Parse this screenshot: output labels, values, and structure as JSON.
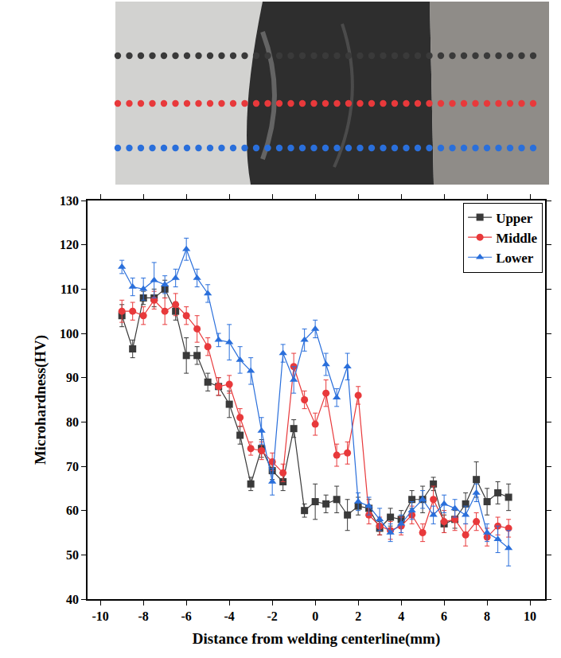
{
  "chart_data": {
    "type": "line",
    "xlabel": "Distance from welding centerline(mm)",
    "ylabel": "Microhardness(HV)",
    "x": [
      -9,
      -8.5,
      -8,
      -7.5,
      -7,
      -6.5,
      -6,
      -5.5,
      -5,
      -4.5,
      -4,
      -3.5,
      -3,
      -2.5,
      -2,
      -1.5,
      -1,
      -0.5,
      0,
      0.5,
      1,
      1.5,
      2,
      2.5,
      3,
      3.5,
      4,
      4.5,
      5,
      5.5,
      6,
      6.5,
      7,
      7.5,
      8,
      8.5,
      9
    ],
    "xlim": [
      -10.6,
      10.7
    ],
    "xticks": [
      -10,
      -8,
      -6,
      -4,
      -2,
      0,
      2,
      4,
      6,
      8,
      10
    ],
    "ylim": [
      40,
      130
    ],
    "yticks": [
      40,
      50,
      60,
      70,
      80,
      90,
      100,
      110,
      120,
      130
    ],
    "grid": false,
    "legend": "upper right",
    "series": [
      {
        "name": "Upper",
        "color": "#3a3a3a",
        "marker": "square",
        "values": [
          104,
          96.5,
          108,
          108,
          110,
          105,
          95,
          95,
          89,
          88,
          84,
          77,
          66,
          74,
          69,
          66.5,
          78.5,
          60,
          62,
          61.5,
          62.5,
          59,
          61,
          60.5,
          56,
          58.5,
          58,
          62.5,
          62.5,
          66,
          57,
          58,
          61.5,
          67,
          62,
          64,
          63
        ],
        "errors": [
          2.5,
          2,
          1.5,
          2,
          2,
          2,
          4,
          2,
          2,
          2,
          3,
          2,
          1.5,
          2,
          2,
          2,
          2,
          1.5,
          4,
          2,
          3,
          3.5,
          2,
          2,
          1.5,
          2,
          2,
          2,
          3,
          1.5,
          2,
          2,
          2.5,
          4,
          3,
          2.5,
          3
        ]
      },
      {
        "name": "Middle",
        "color": "#e8393b",
        "marker": "circle",
        "values": [
          105,
          105,
          104,
          107.5,
          105,
          106.5,
          104,
          101,
          97,
          88,
          88.5,
          81,
          74,
          73.5,
          71,
          68.5,
          92.5,
          85,
          79.5,
          86.5,
          72.5,
          73,
          86,
          59,
          56.5,
          55.5,
          56.5,
          59,
          55,
          62.5,
          57.5,
          58,
          54.5,
          57.5,
          54,
          56.5,
          56
        ],
        "errors": [
          2.5,
          2,
          2,
          2,
          3,
          2.5,
          2,
          3,
          2,
          2,
          2,
          2,
          1.5,
          2,
          2,
          2,
          3,
          2,
          2.5,
          3,
          2.5,
          2.5,
          2,
          2,
          2,
          2,
          2,
          2,
          2,
          3,
          2.5,
          2.5,
          2.5,
          2,
          2,
          2,
          2
        ]
      },
      {
        "name": "Lower",
        "color": "#2a6fdb",
        "marker": "triangle-up",
        "values": [
          115,
          110.5,
          110,
          112,
          111,
          112.5,
          119,
          112.5,
          109,
          98.5,
          98,
          94,
          91.5,
          78,
          66.5,
          95.5,
          89.5,
          98.5,
          101,
          93,
          85.5,
          92.5,
          62,
          61,
          58,
          55,
          57,
          60,
          62.5,
          59,
          61.5,
          60.5,
          59,
          64,
          55,
          53.5,
          51.5
        ],
        "errors": [
          1.5,
          2,
          2.5,
          4,
          2,
          2,
          2.5,
          2,
          2,
          1.5,
          4,
          3,
          3,
          3,
          3,
          2,
          3,
          2.5,
          2,
          2.5,
          2,
          3,
          2,
          2,
          2.5,
          2,
          2,
          2,
          2,
          2,
          2,
          2,
          2,
          2,
          2,
          3,
          4
        ]
      }
    ]
  }
}
